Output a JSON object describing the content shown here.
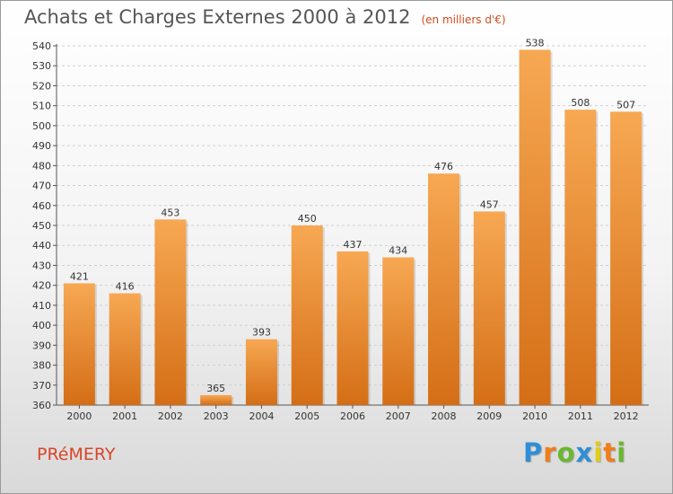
{
  "header": {
    "title": "Achats et Charges Externes 2000 à 2012",
    "unit": "(en milliers d'€)"
  },
  "footer": {
    "commune": "PRéMERY",
    "logo": [
      "P",
      "r",
      "o",
      "x",
      "i",
      "t",
      "i"
    ],
    "logo_colors": [
      "#2f8fd6",
      "#f07d1b",
      "#69b82f",
      "#2f8fd6",
      "#e2cc1a",
      "#f07d1b",
      "#69b82f"
    ]
  },
  "chart_data": {
    "type": "bar",
    "categories": [
      "2000",
      "2001",
      "2002",
      "2003",
      "2004",
      "2005",
      "2006",
      "2007",
      "2008",
      "2009",
      "2010",
      "2011",
      "2012"
    ],
    "values": [
      421,
      416,
      453,
      365,
      393,
      450,
      437,
      434,
      476,
      457,
      538,
      508,
      507
    ],
    "ylim": [
      360,
      540
    ],
    "yticks": [
      360,
      370,
      380,
      390,
      400,
      410,
      420,
      430,
      440,
      450,
      460,
      470,
      480,
      490,
      500,
      510,
      520,
      530,
      540
    ],
    "grid": true,
    "bar_color_top": "#f7a853",
    "bar_color_bottom": "#d46e16"
  }
}
